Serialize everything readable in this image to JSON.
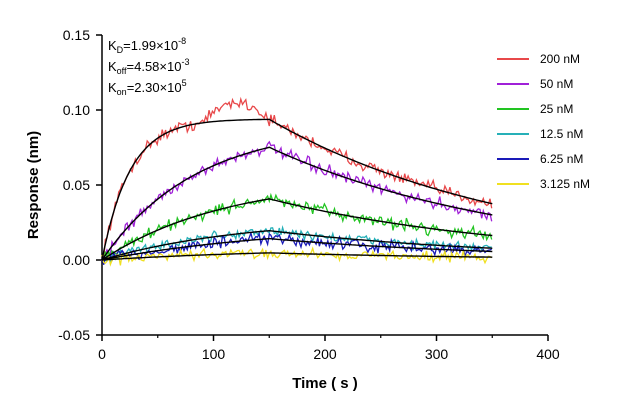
{
  "chart_data": {
    "type": "line",
    "title": "",
    "xlabel": "Time ( s )",
    "ylabel": "Response (nm)",
    "xlim": [
      0,
      400
    ],
    "ylim": [
      -0.05,
      0.15
    ],
    "x_ticks": [
      "0",
      "100",
      "200",
      "300",
      "400"
    ],
    "y_ticks": [
      "-0.05",
      "0.00",
      "0.05",
      "0.10",
      "0.15"
    ],
    "grid": false,
    "legend_position": "right",
    "kinetics": {
      "kd": {
        "label": "K",
        "sub": "D",
        "value": "=1.99×10",
        "exp": "-8"
      },
      "koff": {
        "label": "K",
        "sub": "off",
        "value": "=4.58×10",
        "exp": "-3"
      },
      "kon": {
        "label": "K",
        "sub": "on",
        "value": "=2.30×10",
        "exp": "5"
      }
    },
    "association_end": 150,
    "end_time": 350,
    "series": [
      {
        "name": "200 nM",
        "color": "#e8484a",
        "plateau": 0.094,
        "ka_obs": 0.04,
        "noise": 0.006
      },
      {
        "name": "50 nM",
        "color": "#a020d8",
        "plateau": 0.09,
        "ka_obs": 0.012,
        "noise": 0.006
      },
      {
        "name": "25 nM",
        "color": "#22c422",
        "plateau": 0.055,
        "ka_obs": 0.009,
        "noise": 0.006
      },
      {
        "name": "12.5 nM",
        "color": "#26b0b8",
        "plateau": 0.028,
        "ka_obs": 0.008,
        "noise": 0.005
      },
      {
        "name": "6.25 nM",
        "color": "#1a1ab8",
        "plateau": 0.024,
        "ka_obs": 0.006,
        "noise": 0.006
      },
      {
        "name": "3.125 nM",
        "color": "#f0e020",
        "plateau": 0.008,
        "ka_obs": 0.006,
        "noise": 0.005
      }
    ],
    "fit_color": "#000000",
    "koff_fit": 0.00458
  }
}
